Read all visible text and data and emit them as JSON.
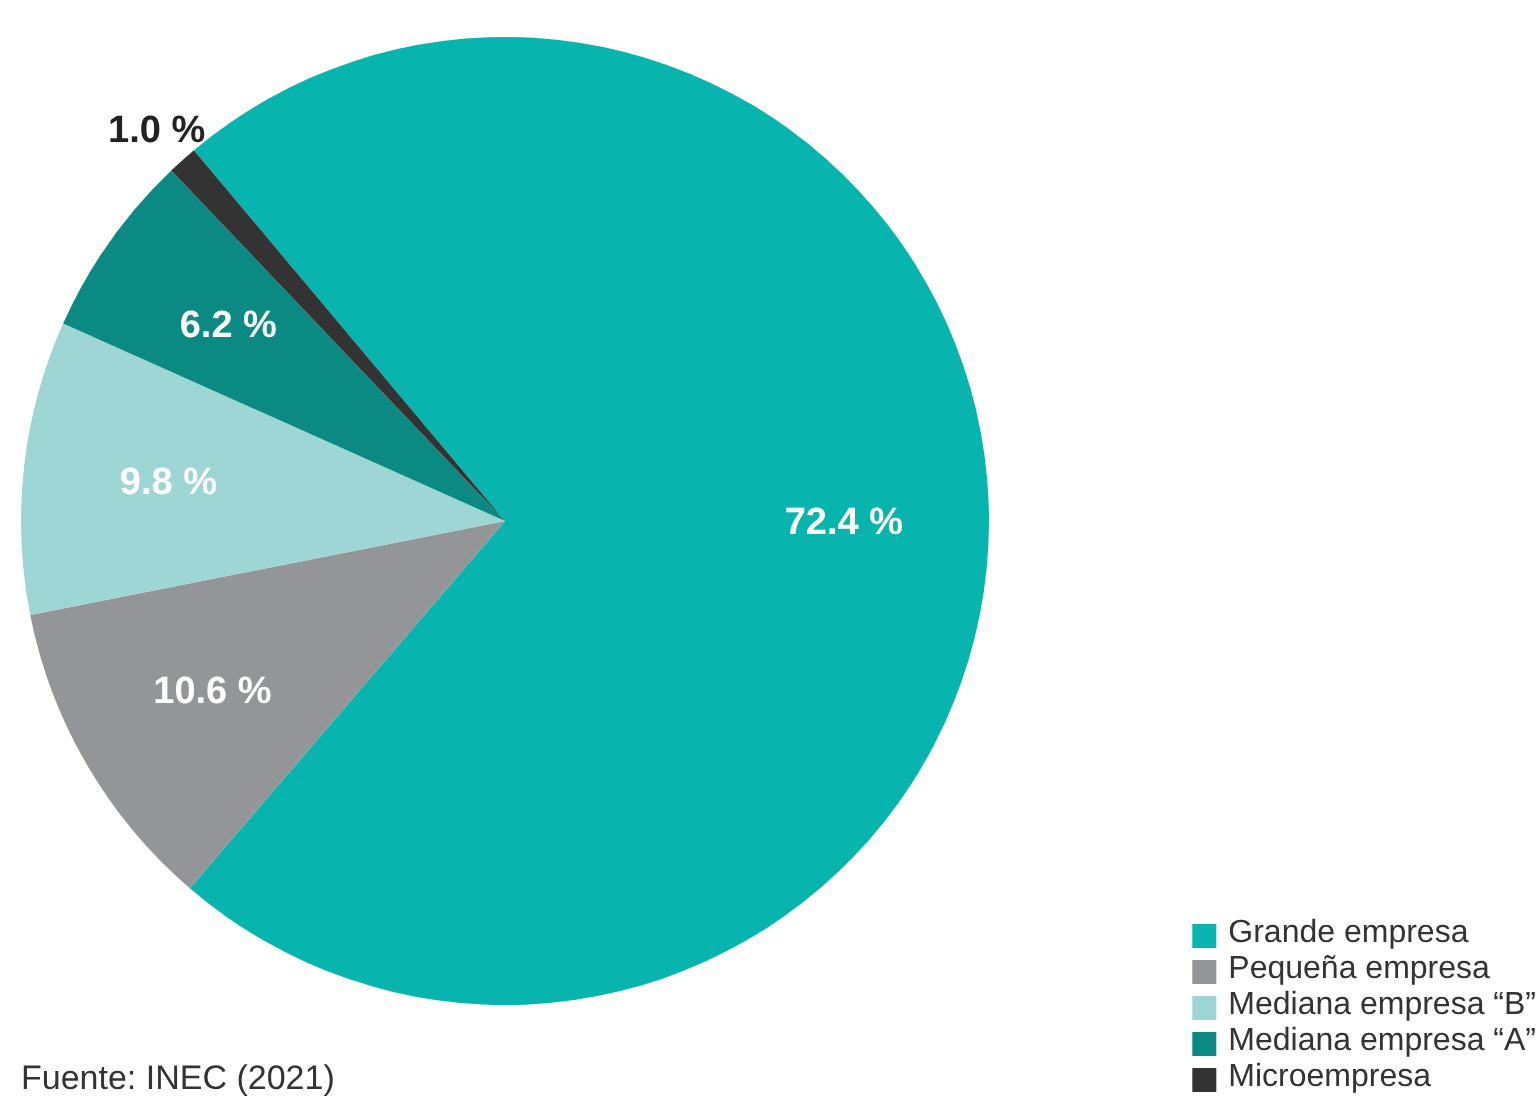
{
  "chart_data": {
    "type": "pie",
    "categories": [
      "Grande empresa",
      "Pequeña empresa",
      "Mediana empresa “B”",
      "Mediana empresa “A”",
      "Microempresa"
    ],
    "values": [
      72.4,
      10.6,
      9.8,
      6.2,
      1.0
    ],
    "colors": [
      "#08b5ae",
      "#939598",
      "#9dd6d4",
      "#0a8a82",
      "#333333"
    ],
    "value_labels": [
      "72.4 %",
      "10.6 %",
      "9.8 %",
      "6.2 %",
      "1.0 %"
    ],
    "legend": "bottom right",
    "annotations": [
      "Fuente: INEC (2021)"
    ]
  }
}
